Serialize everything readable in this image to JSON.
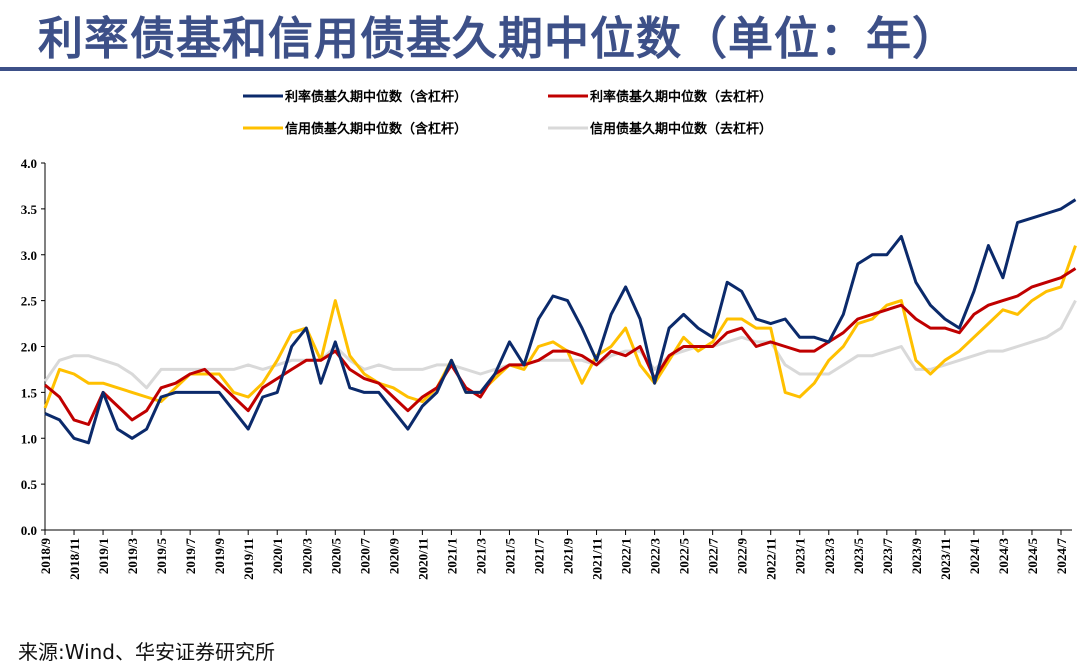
{
  "title": "利率债基和信用债基久期中位数（单位：年）",
  "source": "来源:Wind、华安证券研究所",
  "chart_data": {
    "type": "line",
    "title": "利率债基和信用债基久期中位数（单位：年）",
    "xlabel": "",
    "ylabel": "",
    "ylim": [
      0,
      4
    ],
    "yticks": [
      "0.0",
      "0.5",
      "1.0",
      "1.5",
      "2.0",
      "2.5",
      "3.0",
      "3.5",
      "4.0"
    ],
    "xticks": [
      "2018/9",
      "2018/11",
      "2019/1",
      "2019/3",
      "2019/5",
      "2019/7",
      "2019/9",
      "2019/11",
      "2020/1",
      "2020/3",
      "2020/5",
      "2020/7",
      "2020/9",
      "2020/11",
      "2021/1",
      "2021/3",
      "2021/5",
      "2021/7",
      "2021/9",
      "2021/11",
      "2022/1",
      "2022/3",
      "2022/5",
      "2022/7",
      "2022/9",
      "2022/11",
      "2023/1",
      "2023/3",
      "2023/5",
      "2023/7",
      "2023/9",
      "2023/11",
      "2024/1",
      "2024/3",
      "2024/5",
      "2024/7"
    ],
    "x_start": "2018-09",
    "x_end": "2024-08",
    "grid": false,
    "legend": "top",
    "series": [
      {
        "name": "利率债基久期中位数（含杠杆）",
        "color": "#0b2a6b",
        "values": [
          1.27,
          1.2,
          1.0,
          0.95,
          1.5,
          1.1,
          1.0,
          1.1,
          1.45,
          1.5,
          1.5,
          1.5,
          1.5,
          1.3,
          1.1,
          1.45,
          1.5,
          2.0,
          2.2,
          1.6,
          2.05,
          1.55,
          1.5,
          1.5,
          1.3,
          1.1,
          1.35,
          1.5,
          1.85,
          1.5,
          1.5,
          1.7,
          2.05,
          1.8,
          2.3,
          2.55,
          2.5,
          2.2,
          1.85,
          2.35,
          2.65,
          2.3,
          1.6,
          2.2,
          2.35,
          2.2,
          2.1,
          2.7,
          2.6,
          2.3,
          2.25,
          2.3,
          2.1,
          2.1,
          2.05,
          2.35,
          2.9,
          3.0,
          3.0,
          3.2,
          2.7,
          2.45,
          2.3,
          2.2,
          2.6,
          3.1,
          2.75,
          3.35,
          3.4,
          3.45,
          3.5,
          3.6
        ]
      },
      {
        "name": "利率债基久期中位数（去杠杆）",
        "color": "#c00000",
        "values": [
          1.58,
          1.45,
          1.2,
          1.15,
          1.5,
          1.35,
          1.2,
          1.3,
          1.55,
          1.6,
          1.7,
          1.75,
          1.6,
          1.45,
          1.3,
          1.55,
          1.65,
          1.75,
          1.85,
          1.85,
          1.95,
          1.75,
          1.65,
          1.6,
          1.45,
          1.3,
          1.45,
          1.55,
          1.8,
          1.55,
          1.45,
          1.7,
          1.8,
          1.8,
          1.85,
          1.95,
          1.95,
          1.9,
          1.8,
          1.95,
          1.9,
          2.0,
          1.65,
          1.9,
          2.0,
          2.0,
          2.0,
          2.15,
          2.2,
          2.0,
          2.05,
          2.0,
          1.95,
          1.95,
          2.05,
          2.15,
          2.3,
          2.35,
          2.4,
          2.45,
          2.3,
          2.2,
          2.2,
          2.15,
          2.35,
          2.45,
          2.5,
          2.55,
          2.65,
          2.7,
          2.75,
          2.85
        ]
      },
      {
        "name": "信用债基久期中位数（含杠杆）",
        "color": "#ffc000",
        "values": [
          1.33,
          1.75,
          1.7,
          1.6,
          1.6,
          1.55,
          1.5,
          1.45,
          1.4,
          1.55,
          1.7,
          1.7,
          1.7,
          1.5,
          1.45,
          1.6,
          1.85,
          2.15,
          2.2,
          1.85,
          2.5,
          1.9,
          1.7,
          1.6,
          1.55,
          1.45,
          1.4,
          1.55,
          1.85,
          1.5,
          1.5,
          1.65,
          1.8,
          1.75,
          2.0,
          2.05,
          1.95,
          1.6,
          1.9,
          2.0,
          2.2,
          1.8,
          1.6,
          1.85,
          2.1,
          1.95,
          2.05,
          2.3,
          2.3,
          2.2,
          2.2,
          1.5,
          1.45,
          1.6,
          1.85,
          2.0,
          2.25,
          2.3,
          2.45,
          2.5,
          1.85,
          1.7,
          1.85,
          1.95,
          2.1,
          2.25,
          2.4,
          2.35,
          2.5,
          2.6,
          2.65,
          3.1
        ]
      },
      {
        "name": "信用债基久期中位数（去杠杆）",
        "color": "#d9d9d9",
        "values": [
          1.62,
          1.85,
          1.9,
          1.9,
          1.85,
          1.8,
          1.7,
          1.55,
          1.75,
          1.75,
          1.75,
          1.75,
          1.75,
          1.75,
          1.8,
          1.75,
          1.8,
          1.85,
          1.85,
          1.85,
          2.0,
          1.85,
          1.75,
          1.8,
          1.75,
          1.75,
          1.75,
          1.8,
          1.8,
          1.75,
          1.7,
          1.75,
          1.8,
          1.8,
          1.85,
          1.85,
          1.85,
          1.85,
          1.8,
          1.9,
          1.95,
          1.95,
          1.75,
          1.9,
          1.95,
          2.0,
          2.0,
          2.05,
          2.1,
          2.05,
          2.05,
          1.8,
          1.7,
          1.7,
          1.7,
          1.8,
          1.9,
          1.9,
          1.95,
          2.0,
          1.75,
          1.75,
          1.8,
          1.85,
          1.9,
          1.95,
          1.95,
          2.0,
          2.05,
          2.1,
          2.2,
          2.5
        ]
      }
    ]
  }
}
